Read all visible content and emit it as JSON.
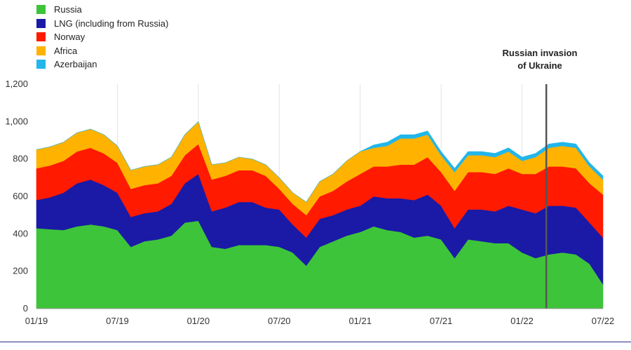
{
  "colors": {
    "russia": "#3ec43a",
    "lng": "#1a1aa6",
    "norway": "#ff1a00",
    "africa": "#ffb300",
    "azerbaijan": "#22b6ea",
    "event_line": "#555555",
    "grid": "#e3e3e3",
    "bottom_rule": "#2b2b8f"
  },
  "annotation": {
    "line1": "Russian invasion",
    "line2": "of Ukraine",
    "date": "02/22"
  },
  "chart_data": {
    "type": "area",
    "stacked": true,
    "title": "",
    "xlabel": "",
    "ylabel": "",
    "ylim": [
      0,
      1200
    ],
    "yticks": [
      "0",
      "200",
      "400",
      "600",
      "800",
      "1,000",
      "1,200"
    ],
    "ytick_values": [
      0,
      200,
      400,
      600,
      800,
      1000,
      1200
    ],
    "xlim": [
      "01/19",
      "07/22"
    ],
    "xticks": [
      "01/19",
      "07/19",
      "01/20",
      "07/20",
      "01/21",
      "07/21",
      "01/22",
      "07/22"
    ],
    "grid": "vertical",
    "legend": "top-left",
    "x_unit": "month",
    "x": [
      "01/19",
      "02/19",
      "03/19",
      "04/19",
      "05/19",
      "06/19",
      "07/19",
      "08/19",
      "09/19",
      "10/19",
      "11/19",
      "12/19",
      "01/20",
      "02/20",
      "03/20",
      "04/20",
      "05/20",
      "06/20",
      "07/20",
      "08/20",
      "09/20",
      "10/20",
      "11/20",
      "12/20",
      "01/21",
      "02/21",
      "03/21",
      "04/21",
      "05/21",
      "06/21",
      "07/21",
      "08/21",
      "09/21",
      "10/21",
      "11/21",
      "12/21",
      "01/22",
      "02/22",
      "03/22",
      "04/22",
      "05/22",
      "06/22",
      "07/22"
    ],
    "series": [
      {
        "name": "Russia",
        "color_key": "russia",
        "values": [
          430,
          425,
          420,
          440,
          450,
          440,
          420,
          330,
          360,
          370,
          390,
          460,
          470,
          330,
          320,
          340,
          340,
          340,
          330,
          300,
          230,
          330,
          360,
          390,
          410,
          440,
          420,
          410,
          380,
          390,
          370,
          270,
          370,
          360,
          350,
          350,
          300,
          270,
          290,
          300,
          290,
          240,
          130
        ]
      },
      {
        "name": "LNG (including from Russia)",
        "color_key": "lng",
        "values": [
          150,
          170,
          200,
          230,
          240,
          220,
          200,
          160,
          150,
          150,
          170,
          210,
          250,
          190,
          220,
          230,
          230,
          200,
          200,
          150,
          150,
          150,
          140,
          140,
          140,
          160,
          170,
          180,
          200,
          220,
          180,
          160,
          160,
          170,
          170,
          200,
          230,
          240,
          260,
          250,
          250,
          220,
          250
        ]
      },
      {
        "name": "Norway",
        "color_key": "norway",
        "values": [
          170,
          170,
          170,
          170,
          170,
          170,
          160,
          150,
          150,
          150,
          150,
          150,
          160,
          170,
          170,
          170,
          170,
          170,
          110,
          110,
          120,
          120,
          130,
          150,
          170,
          160,
          170,
          180,
          190,
          200,
          180,
          200,
          200,
          200,
          200,
          200,
          190,
          210,
          210,
          210,
          210,
          210,
          230
        ]
      },
      {
        "name": "Africa",
        "color_key": "africa",
        "values": [
          100,
          100,
          100,
          100,
          100,
          100,
          90,
          100,
          100,
          100,
          100,
          110,
          120,
          80,
          70,
          70,
          60,
          60,
          60,
          60,
          70,
          80,
          90,
          110,
          120,
          100,
          110,
          140,
          140,
          120,
          90,
          100,
          90,
          90,
          90,
          90,
          70,
          90,
          100,
          110,
          110,
          90,
          80
        ]
      },
      {
        "name": "Azerbaijan",
        "color_key": "azerbaijan",
        "values": [
          0,
          0,
          0,
          0,
          0,
          0,
          0,
          0,
          0,
          0,
          0,
          0,
          0,
          0,
          0,
          0,
          0,
          0,
          0,
          0,
          0,
          0,
          0,
          0,
          0,
          15,
          20,
          20,
          20,
          20,
          20,
          20,
          20,
          20,
          20,
          20,
          20,
          20,
          20,
          20,
          20,
          20,
          20
        ]
      }
    ]
  }
}
